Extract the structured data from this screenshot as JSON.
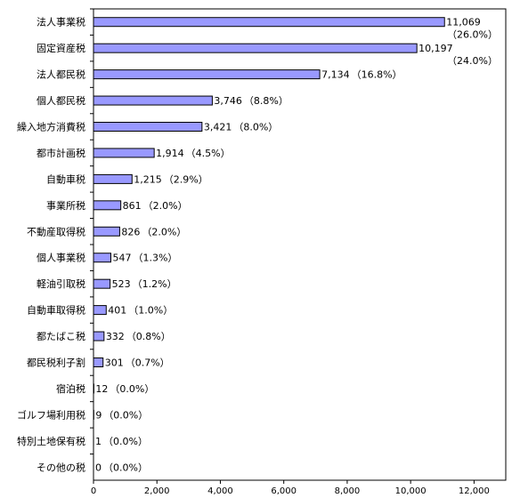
{
  "chart_data": {
    "type": "bar",
    "orientation": "horizontal",
    "categories": [
      "法人事業税",
      "固定資産税",
      "法人都民税",
      "個人都民税",
      "繰入地方消費税",
      "都市計画税",
      "自動車税",
      "事業所税",
      "不動産取得税",
      "個人事業税",
      "軽油引取税",
      "自動車取得税",
      "都たばこ税",
      "都民税利子割",
      "宿泊税",
      "ゴルフ場利用税",
      "特別土地保有税",
      "その他の税"
    ],
    "values": [
      11069,
      10197,
      7134,
      3746,
      3421,
      1914,
      1215,
      861,
      826,
      547,
      523,
      401,
      332,
      301,
      12,
      9,
      1,
      0
    ],
    "value_labels": [
      "11,069",
      "10,197",
      "7,134",
      "3,746",
      "3,421",
      "1,914",
      "1,215",
      "861",
      "826",
      "547",
      "523",
      "401",
      "332",
      "301",
      "12",
      "9",
      "1",
      "0"
    ],
    "percent_labels": [
      "（26.0%）",
      "（24.0%）",
      "（16.8%）",
      "（8.8%）",
      "（8.0%）",
      "（4.5%）",
      "（2.9%）",
      "（2.0%）",
      "（2.0%）",
      "（1.3%）",
      "（1.2%）",
      "（1.0%）",
      "（0.8%）",
      "（0.7%）",
      "（0.0%）",
      "（0.0%）",
      "（0.0%）",
      "（0.0%）"
    ],
    "xlim": [
      0,
      13000
    ],
    "xticks": [
      0,
      2000,
      4000,
      6000,
      8000,
      10000,
      12000
    ],
    "xtick_labels": [
      "0",
      "2,000",
      "4,000",
      "6,000",
      "8,000",
      "10,000",
      "12,000"
    ],
    "title": "",
    "xlabel": "",
    "ylabel": "",
    "grid": false,
    "legend": "none",
    "colors": {
      "bar_fill": "#9999ff",
      "bar_stroke": "#000000",
      "axis": "#000000"
    }
  }
}
